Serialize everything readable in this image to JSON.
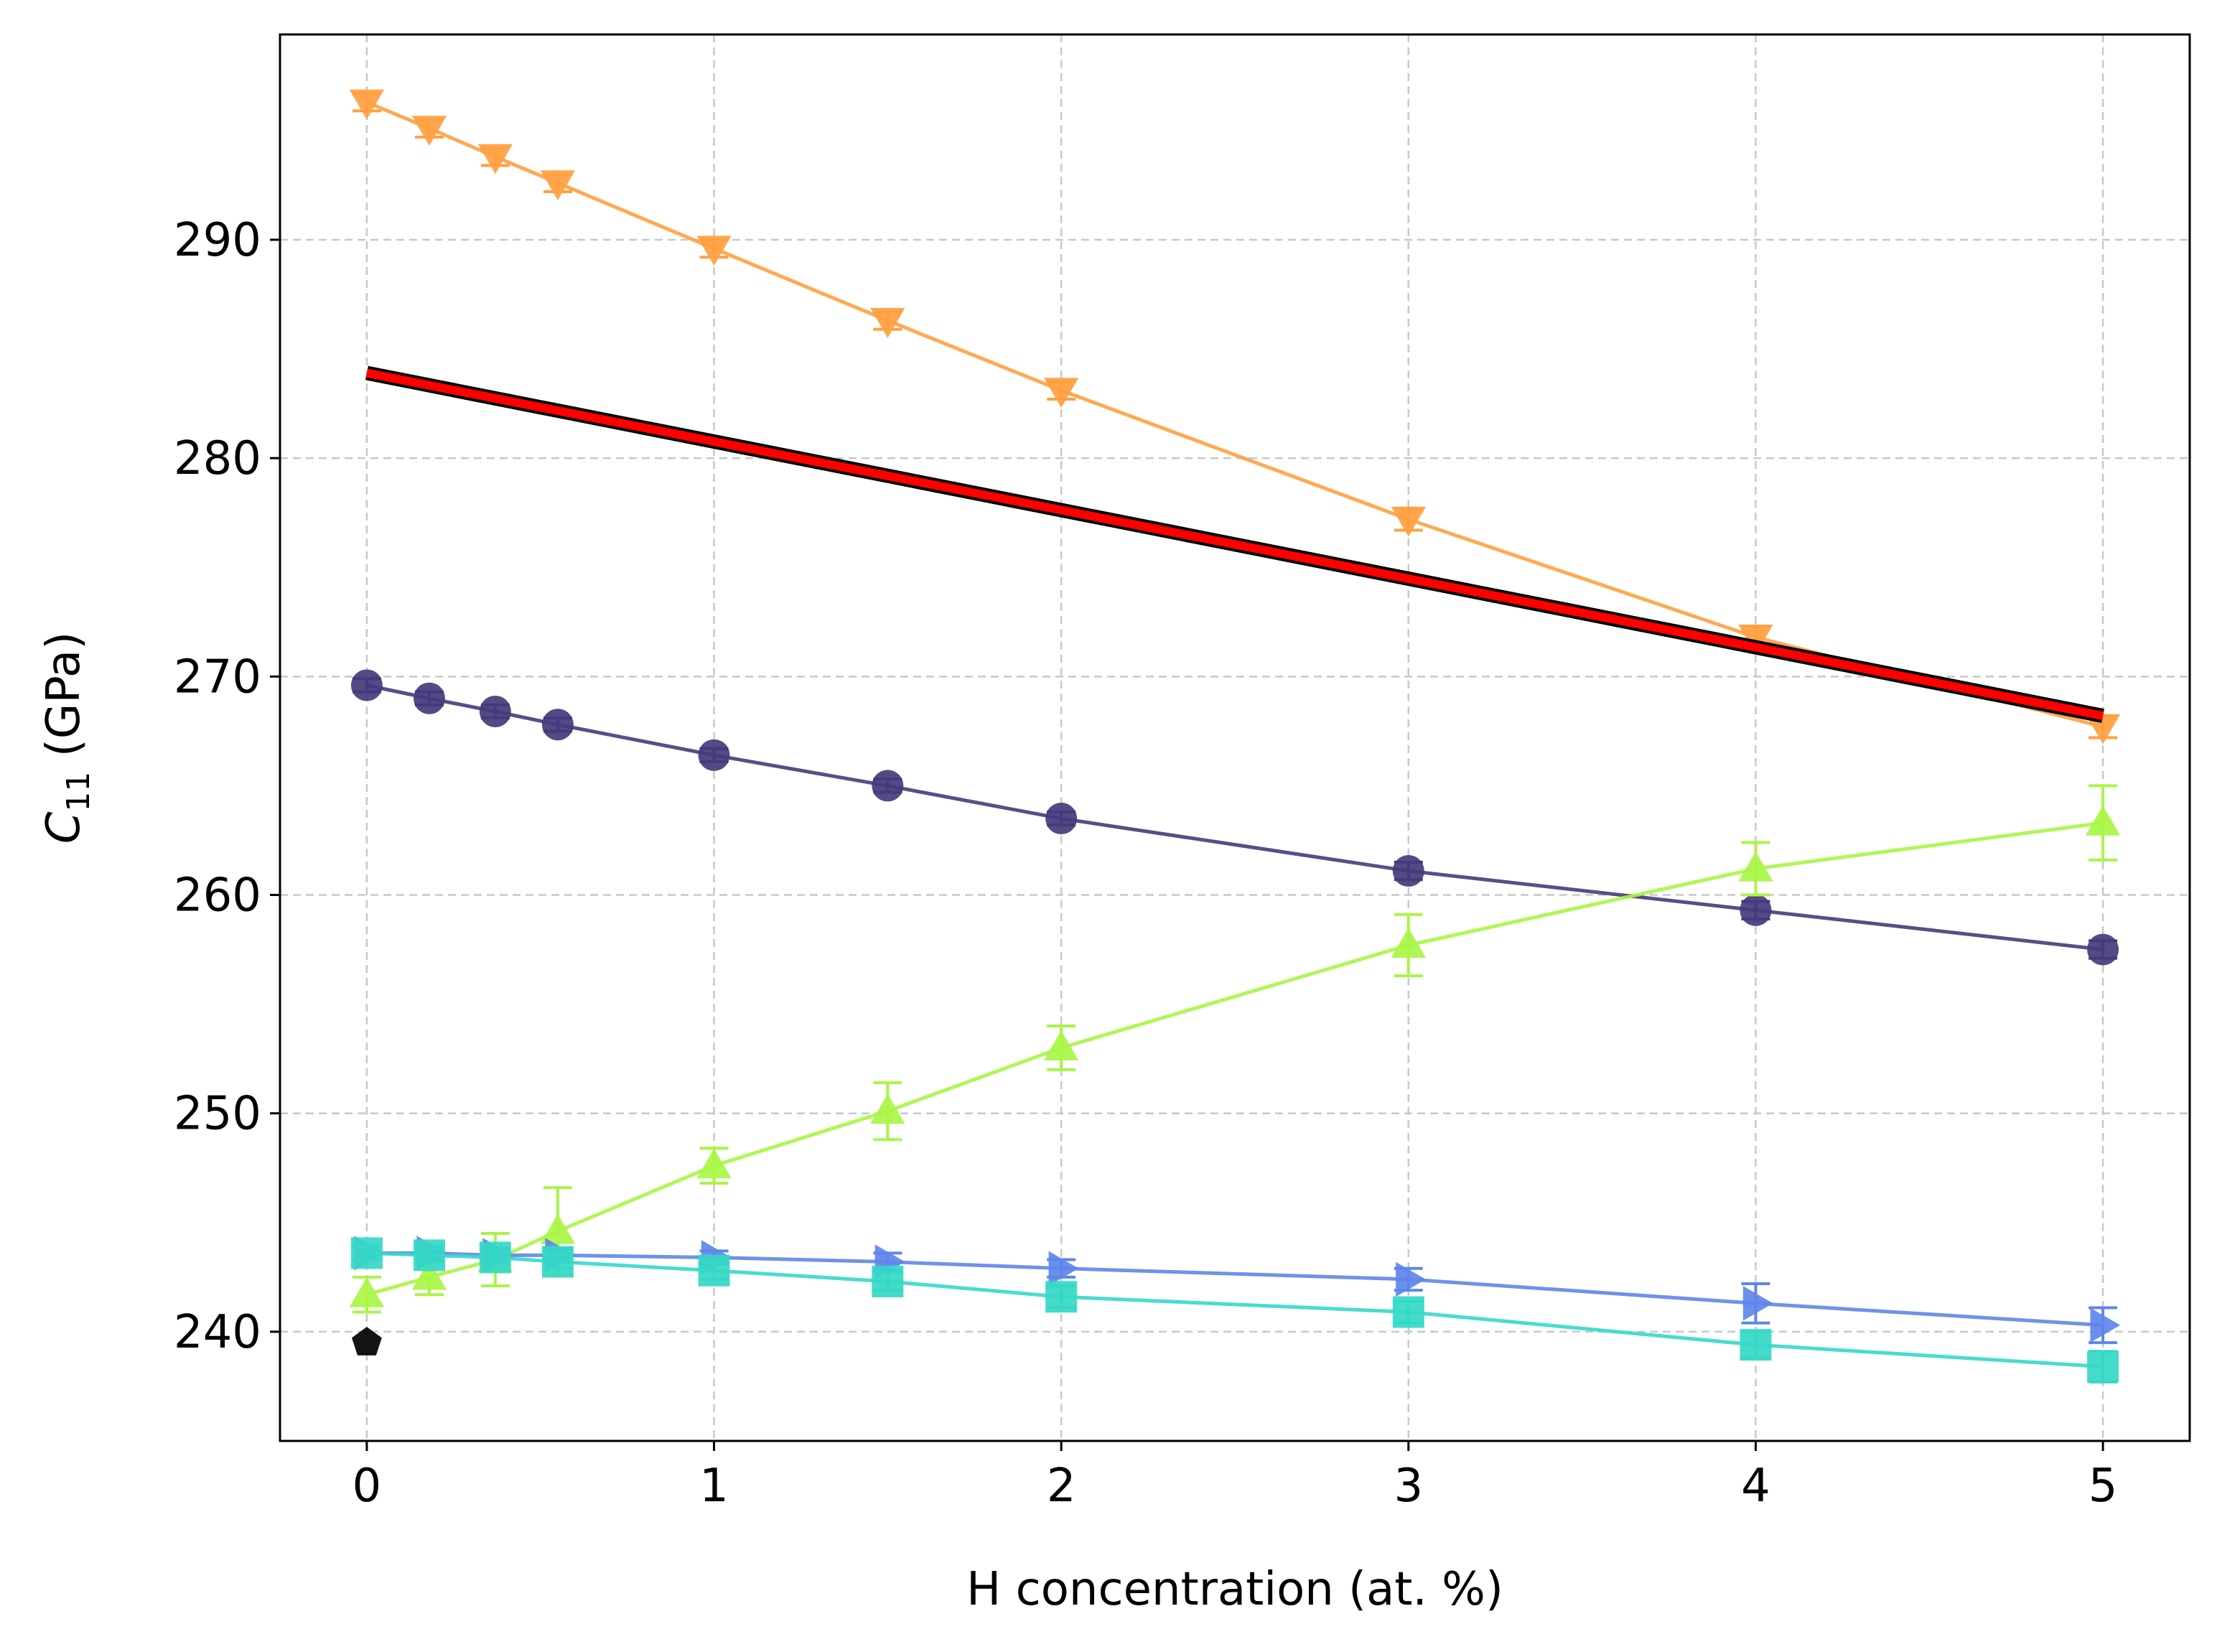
{
  "chart_data": {
    "type": "line",
    "title": "",
    "xlabel": "H concentration (at. %)",
    "ylabel": {
      "main": "C",
      "sub": "11",
      "unit": " (GPa)"
    },
    "xlim": [
      -0.25,
      5.25
    ],
    "ylim": [
      235,
      299.4
    ],
    "xticks": [
      0,
      1,
      2,
      3,
      4,
      5
    ],
    "yticks": [
      240,
      250,
      260,
      270,
      280,
      290
    ],
    "grid": true,
    "legend": "none",
    "series": [
      {
        "name": "orange-down-triangles",
        "marker": "triangle-down",
        "color": "#ffa040",
        "x": [
          0,
          0.18,
          0.37,
          0.55,
          1,
          1.5,
          2,
          3,
          4,
          5
        ],
        "y": [
          296.3,
          295.1,
          293.8,
          292.6,
          289.6,
          286.3,
          283.1,
          277.2,
          271.8,
          267.7
        ],
        "err": [
          0.4,
          0.4,
          0.4,
          0.4,
          0.4,
          0.4,
          0.4,
          0.5,
          0.5,
          0.5
        ]
      },
      {
        "name": "purple-circles",
        "marker": "circle",
        "color": "#473a7c",
        "x": [
          0,
          0.18,
          0.37,
          0.55,
          1,
          1.5,
          2,
          3,
          4,
          5
        ],
        "y": [
          269.6,
          269.0,
          268.4,
          267.8,
          266.4,
          265.0,
          263.5,
          261.1,
          259.3,
          257.5
        ],
        "err": [
          0.3,
          0.3,
          0.3,
          0.3,
          0.3,
          0.3,
          0.3,
          0.4,
          0.4,
          0.4
        ]
      },
      {
        "name": "lime-up-triangles",
        "marker": "triangle-up",
        "color": "#a9f545",
        "x": [
          0,
          0.18,
          0.37,
          0.55,
          1,
          1.5,
          2,
          3,
          4,
          5
        ],
        "y": [
          241.7,
          242.5,
          243.3,
          244.6,
          247.6,
          250.1,
          253.0,
          257.7,
          261.2,
          263.3
        ],
        "err": [
          0.8,
          0.8,
          1.2,
          2.0,
          0.8,
          1.3,
          1.0,
          1.4,
          1.2,
          1.7
        ]
      },
      {
        "name": "blue-right-triangles",
        "marker": "triangle-right",
        "color": "#5e86ea",
        "x": [
          0,
          0.18,
          0.37,
          0.55,
          1,
          1.5,
          2,
          3,
          4,
          5
        ],
        "y": [
          243.6,
          243.6,
          243.5,
          243.5,
          243.4,
          243.2,
          242.9,
          242.4,
          241.3,
          240.3
        ],
        "err": [
          0.3,
          0.3,
          0.3,
          0.3,
          0.3,
          0.4,
          0.4,
          0.5,
          0.9,
          0.8
        ]
      },
      {
        "name": "teal-squares",
        "marker": "square",
        "color": "#35d8c6",
        "x": [
          0,
          0.18,
          0.37,
          0.55,
          1,
          1.5,
          2,
          3,
          4,
          5
        ],
        "y": [
          243.6,
          243.5,
          243.4,
          243.2,
          242.8,
          242.3,
          241.6,
          240.9,
          239.4,
          238.4
        ],
        "err": [
          0.3,
          0.3,
          0.3,
          0.3,
          0.4,
          0.4,
          0.5,
          0.5,
          0.6,
          0.7
        ]
      }
    ],
    "reference_line": {
      "name": "red-black-band",
      "color": "#ff0000",
      "outline": "#000000",
      "x": [
        0,
        5
      ],
      "y": [
        283.9,
        268.2
      ]
    },
    "single_points": [
      {
        "name": "black-pentagon",
        "marker": "pentagon",
        "color": "#000000",
        "x": 0,
        "y": 239.5
      }
    ]
  }
}
